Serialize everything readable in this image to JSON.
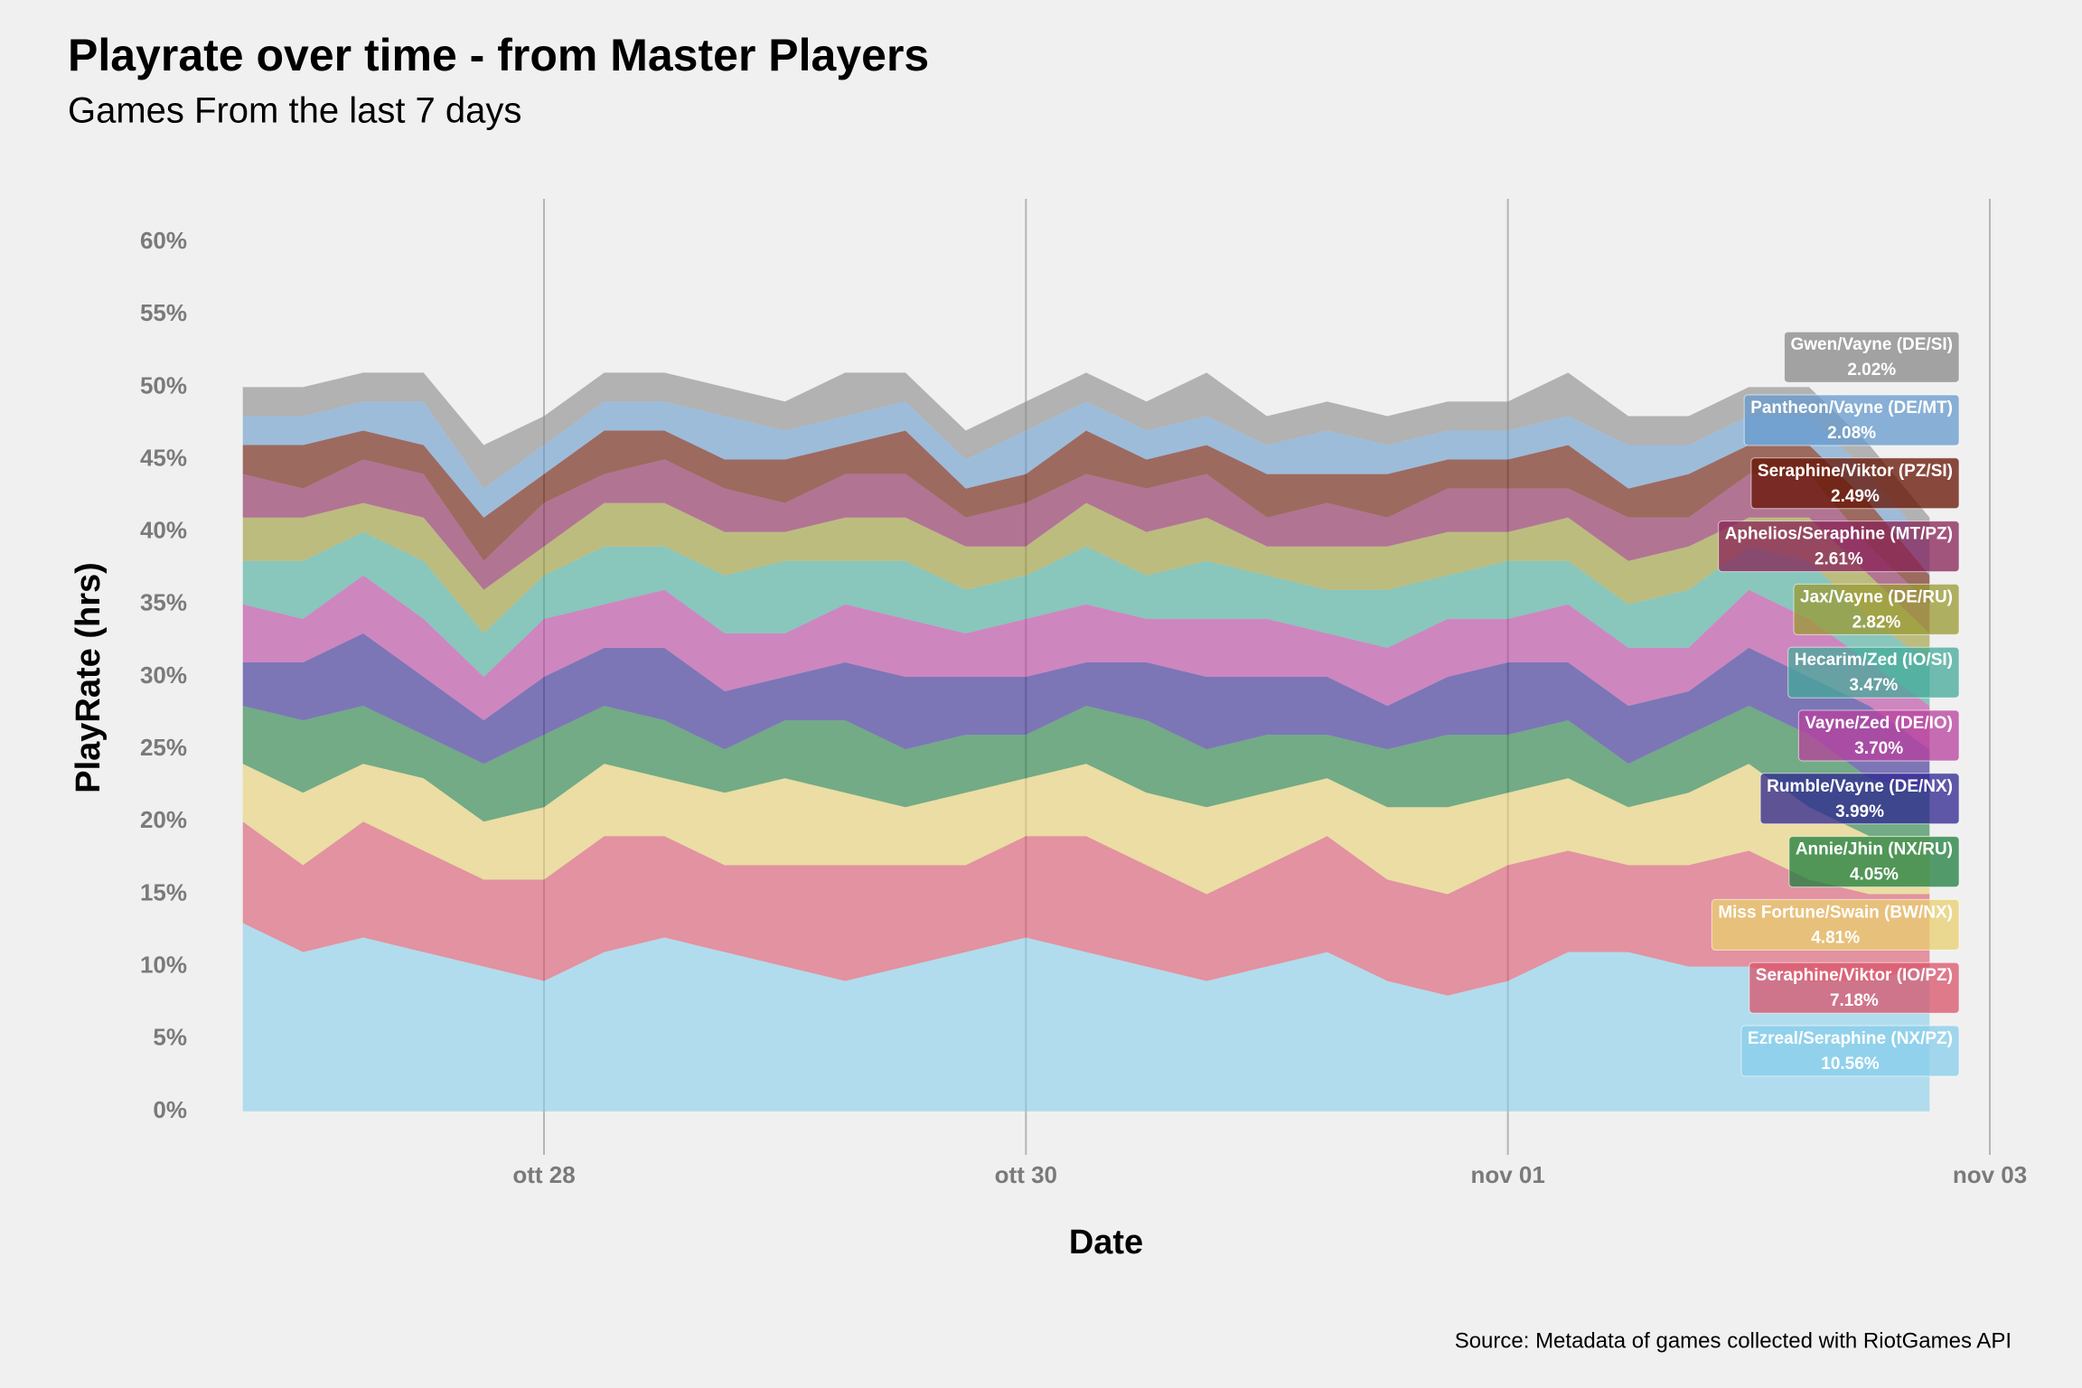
{
  "chart_data": {
    "type": "stacked_area",
    "title": "Playrate over time - from Master Players",
    "subtitle": "Games From the last 7 days",
    "x_label": "Date",
    "y_label": "PlayRate (hrs)",
    "source": "Source: Metadata of games collected with RiotGames API",
    "grid": "x",
    "opacity": 0.6,
    "x": [
      "10-26 18:00",
      "10-27 00:00",
      "10-27 06:00",
      "10-27 12:00",
      "10-27 18:00",
      "10-28 00:00",
      "10-28 06:00",
      "10-28 12:00",
      "10-28 18:00",
      "10-29 00:00",
      "10-29 06:00",
      "10-29 12:00",
      "10-29 18:00",
      "10-30 00:00",
      "10-30 06:00",
      "10-30 12:00",
      "10-30 18:00",
      "10-31 00:00",
      "10-31 06:00",
      "10-31 12:00",
      "10-31 18:00",
      "11-01 00:00",
      "11-01 06:00",
      "11-01 12:00",
      "11-01 18:00",
      "11-02 00:00",
      "11-02 06:00",
      "11-02 12:00",
      "11-02 18:00"
    ],
    "xlim": [
      "10-26 12:00",
      "11-03 00:00"
    ],
    "xticks": [
      {
        "value": "10-28 00:00",
        "label": "ott 28"
      },
      {
        "value": "10-30 00:00",
        "label": "ott 30"
      },
      {
        "value": "11-01 00:00",
        "label": "nov 01"
      },
      {
        "value": "11-03 00:00",
        "label": "nov 03"
      }
    ],
    "ylim": [
      -3,
      63
    ],
    "yticks": [
      {
        "value": 0,
        "label": "0%"
      },
      {
        "value": 5,
        "label": "5%"
      },
      {
        "value": 10,
        "label": "10%"
      },
      {
        "value": 15,
        "label": "15%"
      },
      {
        "value": 20,
        "label": "20%"
      },
      {
        "value": 25,
        "label": "25%"
      },
      {
        "value": 30,
        "label": "30%"
      },
      {
        "value": 35,
        "label": "35%"
      },
      {
        "value": 40,
        "label": "40%"
      },
      {
        "value": 45,
        "label": "45%"
      },
      {
        "value": 50,
        "label": "50%"
      },
      {
        "value": 55,
        "label": "55%"
      },
      {
        "value": 60,
        "label": "60%"
      }
    ],
    "series": [
      {
        "name": "Ezreal/Seraphine (NX/PZ)",
        "color": "#87ceeb",
        "mean": 10.56,
        "mean_label": "10.56%",
        "values": [
          13,
          11,
          12,
          11,
          10,
          9,
          11,
          12,
          11,
          10,
          9,
          10,
          11,
          12,
          11,
          10,
          9,
          10,
          11,
          9,
          8,
          9,
          11,
          11,
          10,
          10,
          9,
          9,
          10
        ]
      },
      {
        "name": "Seraphine/Viktor (IO/PZ)",
        "color": "#d9536a",
        "mean": 7.18,
        "mean_label": "7.18%",
        "values": [
          7,
          6,
          8,
          7,
          6,
          7,
          8,
          7,
          6,
          7,
          8,
          7,
          6,
          7,
          8,
          7,
          6,
          7,
          8,
          7,
          7,
          8,
          7,
          6,
          7,
          8,
          7,
          6,
          5
        ]
      },
      {
        "name": "Miss Fortune/Swain (BW/NX)",
        "color": "#e8d070",
        "mean": 4.81,
        "mean_label": "4.81%",
        "values": [
          4,
          5,
          4,
          5,
          4,
          5,
          5,
          4,
          5,
          6,
          5,
          4,
          5,
          4,
          5,
          5,
          6,
          5,
          4,
          5,
          6,
          5,
          5,
          4,
          5,
          6,
          5,
          4,
          4
        ]
      },
      {
        "name": "Annie/Jhin (NX/RU)",
        "color": "#1e7d3e",
        "mean": 4.05,
        "mean_label": "4.05%",
        "values": [
          4,
          5,
          4,
          3,
          4,
          5,
          4,
          4,
          3,
          4,
          5,
          4,
          4,
          3,
          4,
          5,
          4,
          4,
          3,
          4,
          5,
          4,
          4,
          3,
          4,
          4,
          5,
          4,
          3
        ]
      },
      {
        "name": "Rumble/Vayne (DE/NX)",
        "color": "#2e2490",
        "mean": 3.99,
        "mean_label": "3.99%",
        "values": [
          3,
          4,
          5,
          4,
          3,
          4,
          4,
          5,
          4,
          3,
          4,
          5,
          4,
          4,
          3,
          4,
          5,
          4,
          4,
          3,
          4,
          5,
          4,
          4,
          3,
          4,
          4,
          5,
          3
        ]
      },
      {
        "name": "Vayne/Zed (DE/IO)",
        "color": "#b8409e",
        "mean": 3.7,
        "mean_label": "3.70%",
        "values": [
          4,
          3,
          4,
          4,
          3,
          4,
          3,
          4,
          4,
          3,
          4,
          4,
          3,
          4,
          4,
          3,
          4,
          4,
          3,
          4,
          4,
          3,
          4,
          4,
          3,
          4,
          4,
          3,
          3
        ]
      },
      {
        "name": "Hecarim/Zed (IO/SI)",
        "color": "#44aa99",
        "mean": 3.47,
        "mean_label": "3.47%",
        "values": [
          3,
          4,
          3,
          4,
          3,
          3,
          4,
          3,
          4,
          5,
          3,
          4,
          3,
          3,
          4,
          3,
          4,
          3,
          3,
          4,
          3,
          4,
          3,
          3,
          4,
          3,
          4,
          3,
          3
        ]
      },
      {
        "name": "Jax/Vayne (DE/RU)",
        "color": "#999933",
        "mean": 2.82,
        "mean_label": "2.82%",
        "values": [
          3,
          3,
          2,
          3,
          3,
          2,
          3,
          3,
          3,
          2,
          3,
          3,
          3,
          2,
          3,
          3,
          3,
          2,
          3,
          3,
          3,
          2,
          3,
          3,
          3,
          2,
          3,
          3,
          2
        ]
      },
      {
        "name": "Aphelios/Seraphine (MT/PZ)",
        "color": "#882255",
        "mean": 2.61,
        "mean_label": "2.61%",
        "values": [
          3,
          2,
          3,
          3,
          2,
          3,
          2,
          3,
          3,
          2,
          3,
          3,
          2,
          3,
          2,
          3,
          3,
          2,
          3,
          2,
          3,
          3,
          2,
          3,
          2,
          3,
          3,
          2,
          2
        ]
      },
      {
        "name": "Seraphine/Viktor (PZ/SI)",
        "color": "#661100",
        "mean": 2.49,
        "mean_label": "2.49%",
        "values": [
          2,
          3,
          2,
          2,
          3,
          2,
          3,
          2,
          2,
          3,
          2,
          3,
          2,
          2,
          3,
          2,
          2,
          3,
          2,
          3,
          2,
          2,
          3,
          2,
          3,
          2,
          2,
          3,
          2
        ]
      },
      {
        "name": "Pantheon/Vayne (DE/MT)",
        "color": "#6699cc",
        "mean": 2.08,
        "mean_label": "2.08%",
        "values": [
          2,
          2,
          2,
          3,
          2,
          2,
          2,
          2,
          3,
          2,
          2,
          2,
          2,
          3,
          2,
          2,
          2,
          2,
          3,
          2,
          2,
          2,
          2,
          3,
          2,
          2,
          2,
          2,
          2
        ]
      },
      {
        "name": "Gwen/Vayne (DE/SI)",
        "color": "#888888",
        "mean": 2.02,
        "mean_label": "2.02%",
        "values": [
          2,
          2,
          2,
          2,
          3,
          2,
          2,
          2,
          2,
          2,
          3,
          2,
          2,
          2,
          2,
          2,
          3,
          2,
          2,
          2,
          2,
          2,
          3,
          2,
          2,
          2,
          2,
          2,
          2
        ]
      }
    ]
  }
}
